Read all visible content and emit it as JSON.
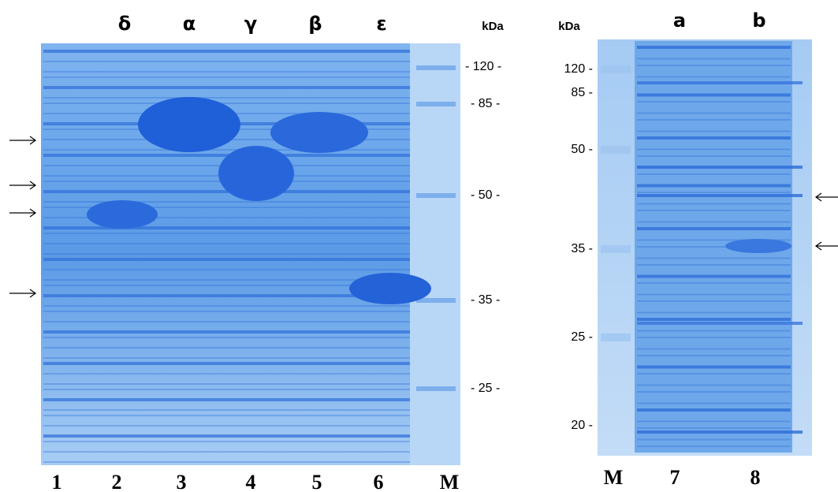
{
  "left_gel": {
    "lane_headers": [
      "δ",
      "α",
      "γ",
      "β",
      "ε"
    ],
    "unit": "kDa",
    "markers": [
      "- 120 -",
      "- 85 -",
      "- 50 -",
      "- 35 -",
      "- 25 -"
    ],
    "lanes": [
      "1",
      "2",
      "3",
      "4",
      "5",
      "6",
      "M"
    ]
  },
  "right_gel": {
    "lane_headers": [
      "a",
      "b"
    ],
    "unit": "kDa",
    "markers": [
      "120 -",
      "85 -",
      "50 -",
      "35 -",
      "25 -",
      "20 -"
    ],
    "lanes": [
      "M",
      "7",
      "8"
    ]
  }
}
